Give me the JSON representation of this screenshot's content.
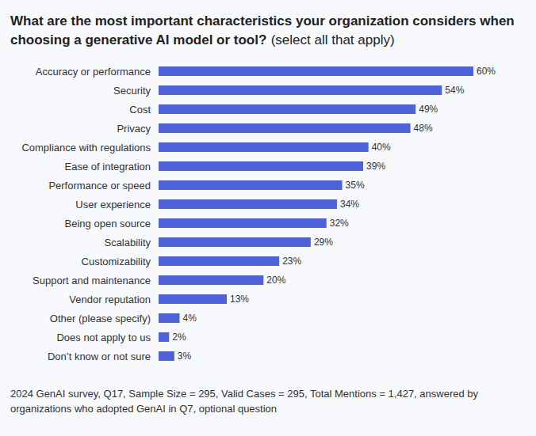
{
  "chart_data": {
    "type": "bar",
    "title": "What are the most important characteristics your organization considers when choosing a generative AI model or tool?",
    "subtitle": "(select all that apply)",
    "annotations": [
      "2024 GenAI survey, Q17, Sample Size = 295, Valid Cases = 295, Total Mentions = 1,427, answered by organizations who adopted GenAI in Q7, optional question"
    ],
    "orientation": "horizontal",
    "categories": [
      "Accuracy or performance",
      "Security",
      "Cost",
      "Privacy",
      "Compliance with regulations",
      "Ease of integration",
      "Performance or speed",
      "User experience",
      "Being open source",
      "Scalability",
      "Customizability",
      "Support and maintenance",
      "Vendor reputation",
      "Other (please specify)",
      "Does not apply to us",
      "Don’t know or not sure"
    ],
    "values": [
      60,
      54,
      49,
      48,
      40,
      39,
      35,
      34,
      32,
      29,
      23,
      20,
      13,
      4,
      2,
      3
    ],
    "value_labels": [
      "60%",
      "54%",
      "49%",
      "48%",
      "40%",
      "39%",
      "35%",
      "34%",
      "32%",
      "29%",
      "23%",
      "20%",
      "13%",
      "4%",
      "2%",
      "3%"
    ],
    "color": "#4f63d9",
    "xlim": [
      0,
      60
    ],
    "grid": false,
    "data_labels": true,
    "tick_labels": false
  }
}
